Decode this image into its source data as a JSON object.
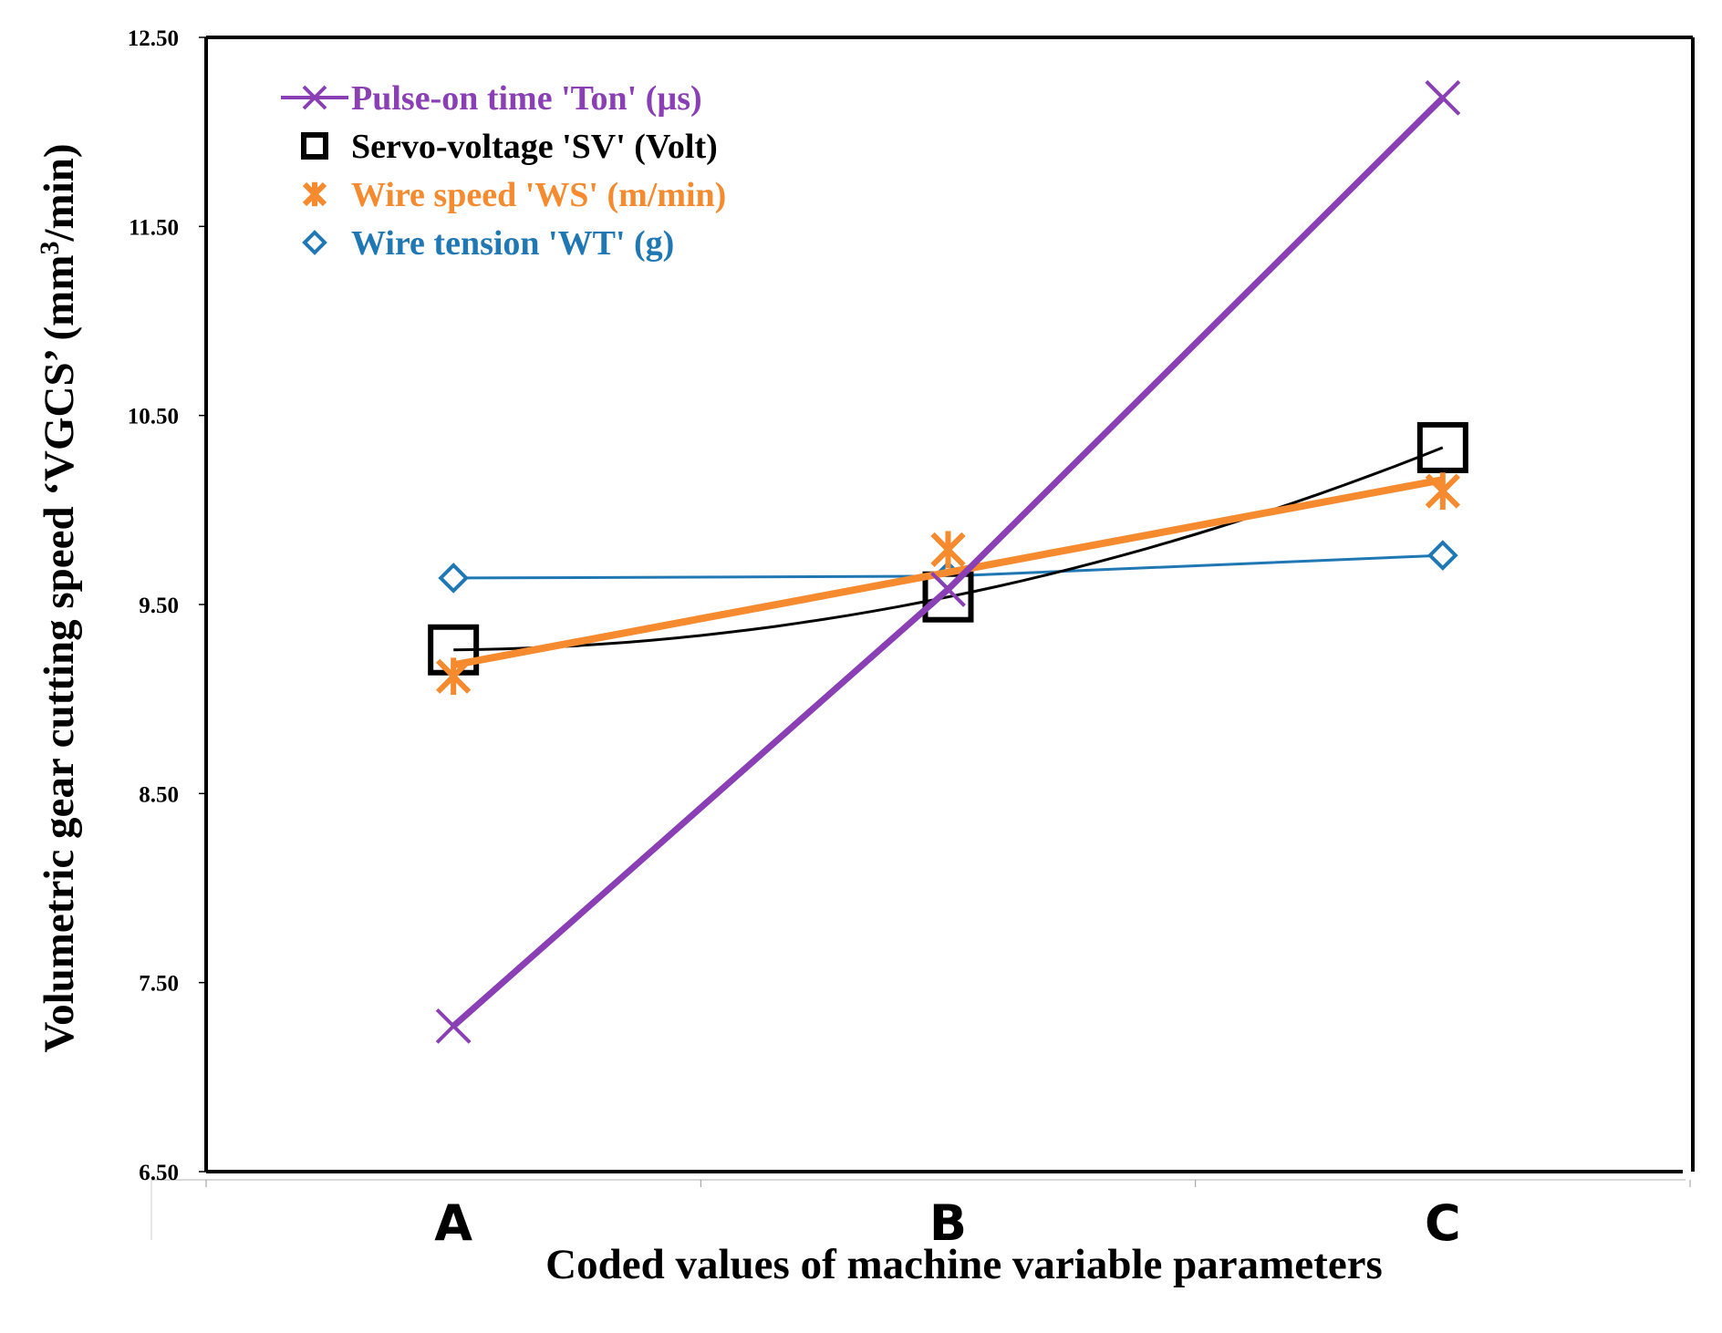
{
  "chart_data": {
    "type": "line",
    "categories": [
      "A",
      "B",
      "C"
    ],
    "xlabel": "Coded values of machine variable parameters",
    "ylabel_main": "Volumetric gear cutting speed ‘VGCS’ (mm",
    "ylabel_sup": "3",
    "ylabel_tail": "/min)",
    "ylim": [
      6.5,
      12.5
    ],
    "yticks": [
      "6.50",
      "7.50",
      "8.50",
      "9.50",
      "10.50",
      "11.50",
      "12.50"
    ],
    "grid": false,
    "legend_position": "top-left",
    "series": [
      {
        "name": "Pulse-on time 'Ton' (µs)",
        "values": [
          7.27,
          9.58,
          12.18
        ],
        "color": "#8b3fb5",
        "marker": "x-icon",
        "line": "straight"
      },
      {
        "name": "Servo-voltage 'SV' (Volt)",
        "values": [
          9.26,
          9.54,
          10.33
        ],
        "color": "#000000",
        "marker": "square-icon",
        "line": "smooth"
      },
      {
        "name": "Wire speed 'WS' (m/min)",
        "values": [
          9.12,
          9.79,
          10.1
        ],
        "color": "#f58a2e",
        "marker": "asterisk-icon",
        "line": "linear-trend"
      },
      {
        "name": "Wire tension 'WT' (g)",
        "values": [
          9.64,
          9.65,
          9.76
        ],
        "color": "#1f78b4",
        "marker": "diamond-icon",
        "line": "straight"
      }
    ]
  }
}
